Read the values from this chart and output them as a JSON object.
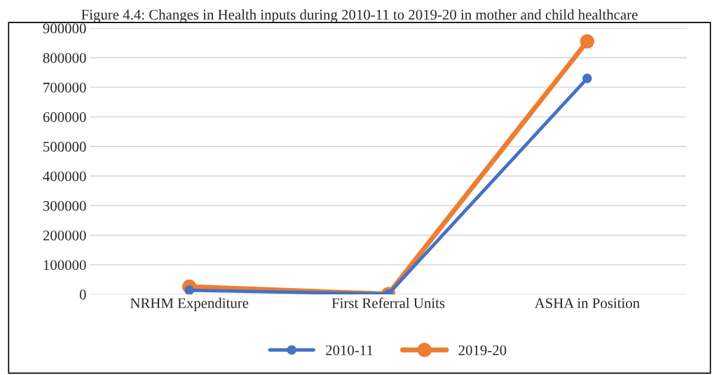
{
  "chart_data": {
    "type": "line",
    "title": "Figure 4.4: Changes in Health inputs during 2010-11 to 2019-20 in mother and child healthcare",
    "categories": [
      "NRHM Expenditure",
      "First Referral Units",
      "ASHA in Position"
    ],
    "series": [
      {
        "name": "2010-11",
        "color": "#4472c4",
        "values": [
          14000,
          1000,
          730000
        ]
      },
      {
        "name": "2019-20",
        "color": "#ed7d31",
        "values": [
          26000,
          1000,
          855000
        ]
      }
    ],
    "ylim": [
      0,
      900000
    ],
    "yticks": [
      0,
      100000,
      200000,
      300000,
      400000,
      500000,
      600000,
      700000,
      800000,
      900000
    ],
    "grid": "y",
    "legend": "bottom",
    "marker": "circle",
    "line_style": "solid"
  }
}
